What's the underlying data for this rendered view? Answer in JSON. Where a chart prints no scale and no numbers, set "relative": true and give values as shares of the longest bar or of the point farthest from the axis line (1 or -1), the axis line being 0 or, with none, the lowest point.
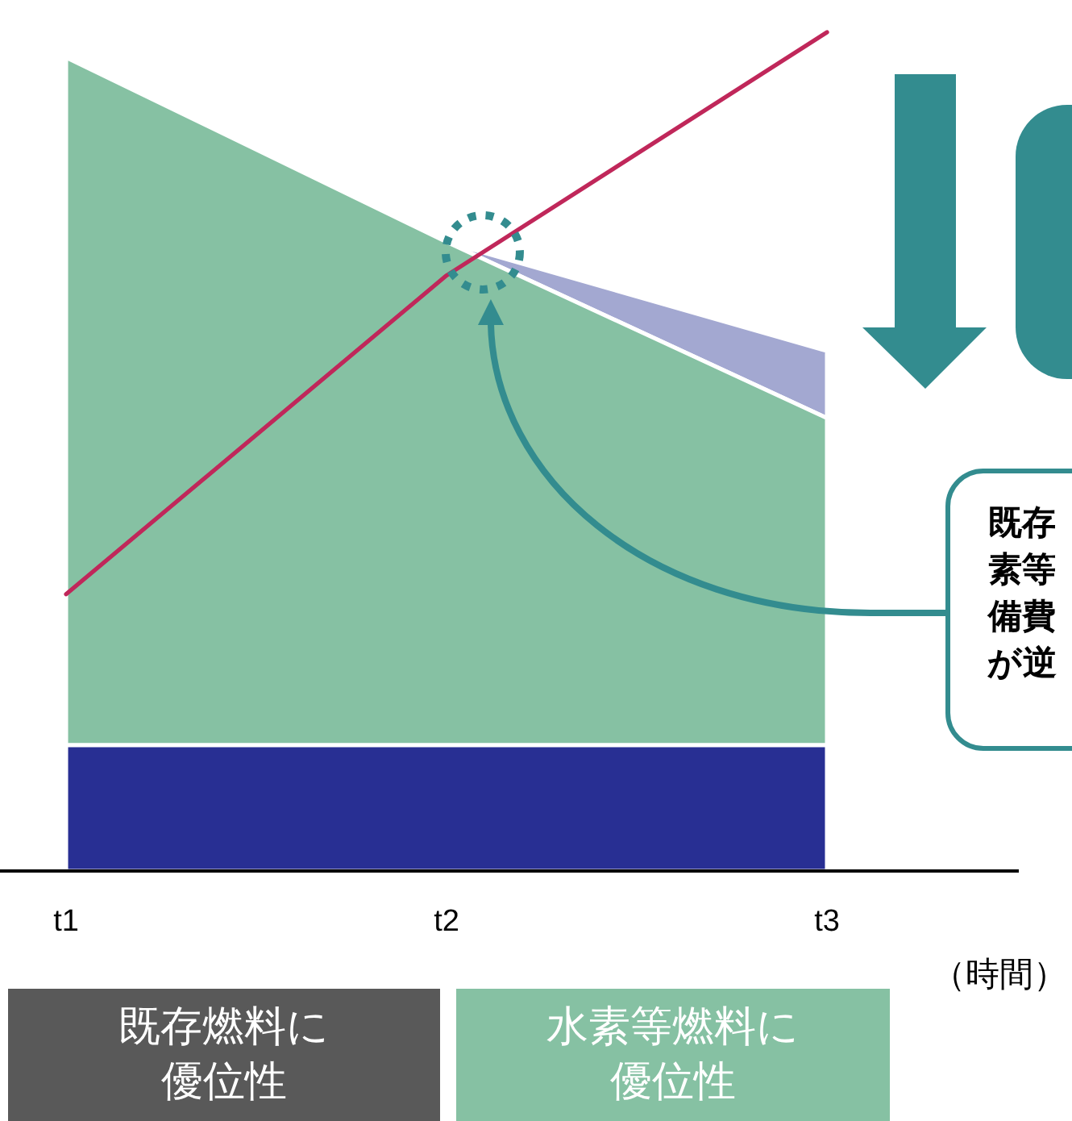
{
  "chart_data": {
    "type": "area",
    "relative": true,
    "xlabel": "（時間）",
    "categories": [
      "t1",
      "t2",
      "t3"
    ],
    "series": [
      {
        "color": "#a3a8d1",
        "values": [
          null,
          0.75,
          0.62
        ]
      },
      {
        "color": "#86c1a3",
        "values": [
          0.97,
          0.75,
          0.54
        ]
      },
      {
        "color": "#282f93",
        "values": [
          0.15,
          0.15,
          0.15
        ]
      },
      {
        "type": "line",
        "color": "#c0275a",
        "values": [
          0.33,
          0.71,
          1
        ]
      }
    ],
    "annotations": [
      "既存素等備費が逆",
      "既存燃料に優位性",
      "水素等燃料に優位性"
    ]
  }
}
